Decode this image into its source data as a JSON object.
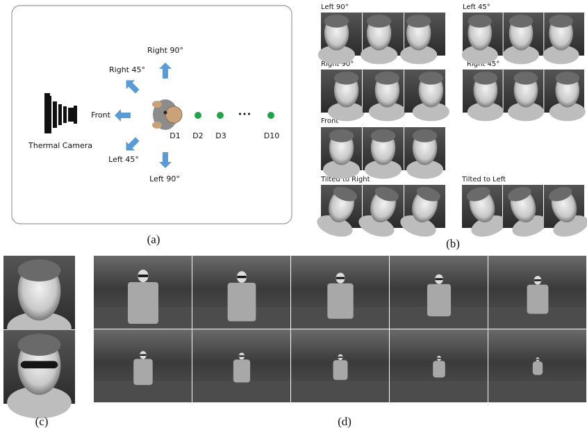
{
  "panel_a": {
    "camera_label": "Thermal Camera",
    "directions": [
      "Right 90°",
      "Right 45°",
      "Front",
      "Left 45°",
      "Left 90°"
    ],
    "distances": [
      "D1",
      "D2",
      "D3",
      "D10"
    ],
    "ellipsis": "•••",
    "caption": "(a)"
  },
  "panel_b": {
    "groups": [
      "Left 90°",
      "Left 45°",
      "Right 90°",
      "Right 45°",
      "Front",
      "Tilted to Right",
      "Tilted to Left"
    ],
    "caption": "(b)"
  },
  "panel_c": {
    "caption": "(c)"
  },
  "panel_d": {
    "caption": "(d)"
  }
}
